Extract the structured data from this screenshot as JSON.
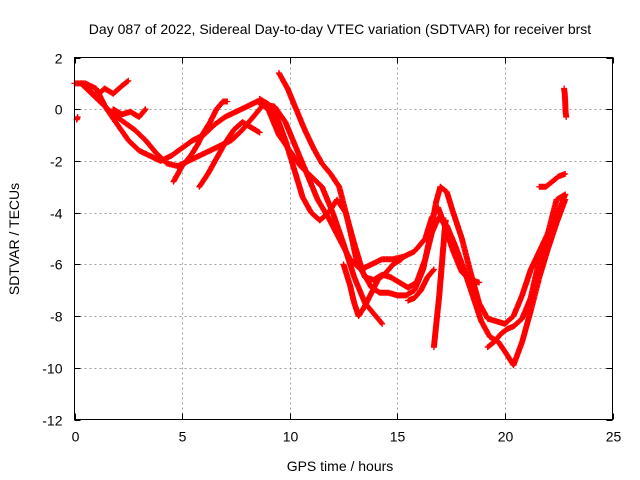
{
  "chart_data": {
    "type": "scatter",
    "title": "Day 087 of 2022, Sidereal Day-to-day VTEC variation (SDTVAR) for receiver brst",
    "xlabel": "GPS time / hours",
    "ylabel": "SDTVAR / TECUs",
    "xlim": [
      0,
      25
    ],
    "ylim": [
      -12,
      2
    ],
    "xticks": [
      0,
      5,
      10,
      15,
      20,
      25
    ],
    "xtick_labels": [
      "0",
      "5",
      "10",
      "15",
      "20",
      "25"
    ],
    "yticks": [
      -12,
      -10,
      -8,
      -6,
      -4,
      -2,
      0,
      2
    ],
    "ytick_labels": [
      "-12",
      "-10",
      "-8",
      "-6",
      "-4",
      "-2",
      "0",
      "2"
    ],
    "grid": true,
    "marker": "+",
    "color": "#ff0000",
    "series": [
      {
        "name": "track-1",
        "points": [
          [
            0,
            1.0
          ],
          [
            0.5,
            1.0
          ],
          [
            1.0,
            0.8
          ],
          [
            1.5,
            0.0
          ],
          [
            2.0,
            -0.6
          ],
          [
            2.5,
            -1.2
          ],
          [
            3.0,
            -1.6
          ],
          [
            3.5,
            -1.8
          ],
          [
            4.0,
            -2.0
          ],
          [
            4.5,
            -1.8
          ],
          [
            5.0,
            -1.5
          ],
          [
            5.5,
            -1.2
          ],
          [
            6.0,
            -1.0
          ],
          [
            6.5,
            -0.6
          ],
          [
            7.0,
            -0.3
          ],
          [
            7.5,
            -0.1
          ],
          [
            8.0,
            0.1
          ],
          [
            8.5,
            0.3
          ],
          [
            9.0,
            0.0
          ],
          [
            9.5,
            -1.0
          ],
          [
            10.0,
            -1.6
          ],
          [
            10.5,
            -2.2
          ],
          [
            11.0,
            -2.6
          ],
          [
            11.5,
            -3.0
          ],
          [
            12.0,
            -4.0
          ],
          [
            12.5,
            -5.2
          ],
          [
            13.0,
            -6.5
          ],
          [
            13.5,
            -7.5
          ],
          [
            14.0,
            -8.0
          ],
          [
            14.3,
            -8.3
          ]
        ]
      },
      {
        "name": "track-2",
        "points": [
          [
            0.3,
            1.0
          ],
          [
            0.8,
            0.6
          ],
          [
            1.3,
            0.2
          ],
          [
            1.8,
            -0.2
          ],
          [
            2.3,
            -0.5
          ],
          [
            2.8,
            -0.8
          ],
          [
            3.3,
            -1.2
          ],
          [
            3.8,
            -1.7
          ],
          [
            4.3,
            -2.1
          ],
          [
            4.8,
            -2.2
          ],
          [
            5.3,
            -2.0
          ],
          [
            5.8,
            -1.8
          ],
          [
            6.3,
            -1.6
          ],
          [
            6.8,
            -1.4
          ],
          [
            7.3,
            -1.2
          ],
          [
            7.8,
            -0.8
          ],
          [
            8.3,
            -0.3
          ],
          [
            8.8,
            0.2
          ],
          [
            9.3,
            0.1
          ],
          [
            9.8,
            -0.5
          ],
          [
            10.3,
            -1.5
          ],
          [
            10.8,
            -2.5
          ],
          [
            11.3,
            -3.5
          ],
          [
            11.8,
            -4.2
          ],
          [
            12.3,
            -5.0
          ],
          [
            12.8,
            -5.8
          ],
          [
            13.3,
            -6.2
          ],
          [
            13.8,
            -6.0
          ],
          [
            14.3,
            -5.8
          ],
          [
            14.8,
            -5.8
          ],
          [
            15.3,
            -5.7
          ],
          [
            15.8,
            -5.5
          ],
          [
            16.3,
            -5.0
          ],
          [
            16.6,
            -4.2
          ],
          [
            16.9,
            -3.8
          ],
          [
            17.2,
            -4.5
          ],
          [
            17.6,
            -5.5
          ],
          [
            18.0,
            -6.3
          ],
          [
            18.4,
            -6.6
          ],
          [
            18.8,
            -6.7
          ]
        ]
      },
      {
        "name": "track-3",
        "points": [
          [
            8.6,
            0.4
          ],
          [
            9.0,
            0.2
          ],
          [
            9.4,
            -0.3
          ],
          [
            9.8,
            -1.2
          ],
          [
            10.2,
            -2.3
          ],
          [
            10.6,
            -3.4
          ],
          [
            11.0,
            -4.0
          ],
          [
            11.4,
            -4.3
          ],
          [
            11.8,
            -4.0
          ],
          [
            12.2,
            -3.5
          ],
          [
            12.6,
            -4.0
          ],
          [
            13.0,
            -5.2
          ],
          [
            13.4,
            -6.3
          ],
          [
            13.8,
            -6.9
          ],
          [
            14.2,
            -7.1
          ],
          [
            14.6,
            -7.1
          ],
          [
            15.0,
            -7.2
          ],
          [
            15.4,
            -7.2
          ],
          [
            15.8,
            -7.0
          ],
          [
            16.2,
            -6.2
          ],
          [
            16.5,
            -5.0
          ],
          [
            16.8,
            -3.6
          ],
          [
            17.0,
            -3.0
          ],
          [
            17.3,
            -3.2
          ],
          [
            17.6,
            -4.0
          ],
          [
            18.0,
            -5.0
          ],
          [
            18.4,
            -6.3
          ],
          [
            18.8,
            -7.5
          ],
          [
            19.2,
            -8.1
          ],
          [
            19.6,
            -8.2
          ],
          [
            20.0,
            -8.3
          ],
          [
            20.4,
            -8.0
          ],
          [
            20.8,
            -7.2
          ],
          [
            21.2,
            -6.2
          ],
          [
            21.6,
            -5.5
          ],
          [
            22.0,
            -4.8
          ],
          [
            22.4,
            -4.2
          ],
          [
            22.8,
            -3.3
          ]
        ]
      },
      {
        "name": "track-4",
        "points": [
          [
            9.5,
            1.4
          ],
          [
            9.9,
            0.8
          ],
          [
            10.3,
            0.0
          ],
          [
            10.7,
            -0.8
          ],
          [
            11.1,
            -1.5
          ],
          [
            11.5,
            -2.1
          ],
          [
            11.9,
            -2.5
          ],
          [
            12.3,
            -3.0
          ],
          [
            12.7,
            -4.3
          ],
          [
            13.1,
            -5.8
          ],
          [
            13.5,
            -6.5
          ],
          [
            13.9,
            -6.6
          ],
          [
            14.3,
            -6.4
          ],
          [
            14.7,
            -6.5
          ],
          [
            15.1,
            -6.7
          ],
          [
            15.5,
            -6.9
          ],
          [
            15.9,
            -6.7
          ],
          [
            16.3,
            -5.8
          ],
          [
            16.6,
            -4.8
          ],
          [
            16.9,
            -4.2
          ],
          [
            17.3,
            -4.5
          ],
          [
            17.7,
            -5.3
          ],
          [
            18.1,
            -6.2
          ],
          [
            18.5,
            -7.2
          ],
          [
            18.9,
            -8.2
          ],
          [
            19.3,
            -8.8
          ],
          [
            19.7,
            -9.0
          ],
          [
            20.1,
            -9.5
          ],
          [
            20.4,
            -9.9
          ],
          [
            20.8,
            -9.0
          ],
          [
            21.2,
            -7.8
          ],
          [
            21.6,
            -6.5
          ],
          [
            22.0,
            -5.4
          ],
          [
            22.4,
            -4.4
          ],
          [
            22.8,
            -3.5
          ]
        ]
      },
      {
        "name": "track-5",
        "points": [
          [
            0.6,
            0.8
          ],
          [
            1.0,
            0.5
          ],
          [
            1.4,
            0.8
          ],
          [
            1.8,
            0.6
          ],
          [
            2.2,
            0.9
          ],
          [
            2.5,
            1.1
          ]
        ]
      },
      {
        "name": "track-6",
        "points": [
          [
            1.8,
            0.0
          ],
          [
            2.2,
            -0.2
          ],
          [
            2.6,
            -0.1
          ],
          [
            3.0,
            -0.3
          ],
          [
            3.3,
            0.0
          ]
        ]
      },
      {
        "name": "track-7",
        "points": [
          [
            4.6,
            -2.8
          ],
          [
            5.0,
            -2.2
          ],
          [
            5.4,
            -1.8
          ],
          [
            5.7,
            -1.4
          ],
          [
            6.0,
            -0.9
          ],
          [
            6.3,
            -0.5
          ],
          [
            6.6,
            0.0
          ],
          [
            6.9,
            0.3
          ],
          [
            7.1,
            0.3
          ]
        ]
      },
      {
        "name": "track-8",
        "points": [
          [
            5.8,
            -3.0
          ],
          [
            6.2,
            -2.5
          ],
          [
            6.6,
            -1.9
          ],
          [
            7.0,
            -1.3
          ],
          [
            7.4,
            -0.8
          ],
          [
            7.8,
            -0.5
          ],
          [
            8.2,
            -0.7
          ],
          [
            8.6,
            -0.9
          ]
        ]
      },
      {
        "name": "track-9",
        "points": [
          [
            12.5,
            -6.0
          ],
          [
            12.8,
            -6.8
          ],
          [
            13.0,
            -7.5
          ],
          [
            13.2,
            -8.0
          ],
          [
            13.5,
            -7.6
          ],
          [
            13.8,
            -7.1
          ],
          [
            14.1,
            -6.6
          ],
          [
            14.5,
            -6.3
          ],
          [
            14.8,
            -6.0
          ],
          [
            15.2,
            -5.8
          ]
        ]
      },
      {
        "name": "track-10",
        "points": [
          [
            15.5,
            -7.4
          ],
          [
            15.8,
            -7.3
          ],
          [
            16.1,
            -7.0
          ],
          [
            16.4,
            -6.5
          ],
          [
            16.7,
            -6.2
          ]
        ]
      },
      {
        "name": "track-11",
        "points": [
          [
            16.7,
            -9.2
          ],
          [
            16.75,
            -8.8
          ],
          [
            16.8,
            -8.4
          ],
          [
            16.85,
            -8.0
          ],
          [
            16.9,
            -7.6
          ],
          [
            16.95,
            -7.2
          ],
          [
            17.0,
            -6.7
          ],
          [
            17.05,
            -6.2
          ],
          [
            17.1,
            -5.7
          ],
          [
            17.15,
            -5.2
          ],
          [
            17.2,
            -4.7
          ],
          [
            17.25,
            -4.3
          ]
        ]
      },
      {
        "name": "track-12",
        "points": [
          [
            19.2,
            -9.2
          ],
          [
            19.5,
            -9.0
          ],
          [
            19.8,
            -8.7
          ],
          [
            20.1,
            -8.5
          ],
          [
            20.4,
            -8.4
          ],
          [
            20.8,
            -8.1
          ],
          [
            21.2,
            -7.3
          ],
          [
            21.6,
            -5.8
          ],
          [
            22.0,
            -4.8
          ],
          [
            22.4,
            -3.5
          ],
          [
            22.8,
            -3.3
          ]
        ]
      },
      {
        "name": "track-13",
        "points": [
          [
            21.6,
            -3.0
          ],
          [
            21.9,
            -3.0
          ],
          [
            22.2,
            -2.8
          ],
          [
            22.5,
            -2.6
          ],
          [
            22.8,
            -2.5
          ]
        ]
      },
      {
        "name": "track-14",
        "points": [
          [
            22.75,
            0.8
          ],
          [
            22.78,
            0.6
          ],
          [
            22.8,
            0.3
          ],
          [
            22.82,
            -0.1
          ],
          [
            22.85,
            -0.3
          ]
        ]
      },
      {
        "name": "track-15",
        "points": [
          [
            0.1,
            -0.4
          ],
          [
            0.15,
            -0.3
          ]
        ]
      }
    ]
  }
}
